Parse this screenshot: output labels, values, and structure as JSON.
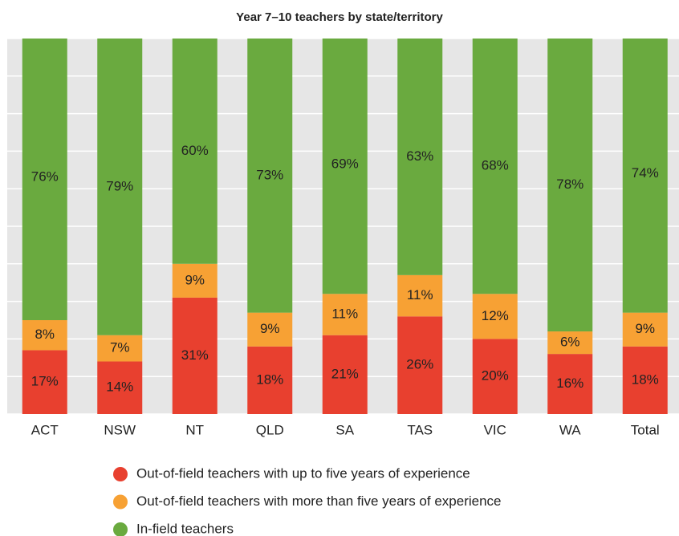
{
  "chart_data": {
    "type": "stacked_bar",
    "title": "Year 7–10 teachers by state/territory",
    "categories": [
      "ACT",
      "NSW",
      "NT",
      "QLD",
      "SA",
      "TAS",
      "VIC",
      "WA",
      "Total"
    ],
    "series": [
      {
        "name": "Out-of-field teachers with up to five years of experience",
        "color": "#e8402f",
        "values": [
          17,
          14,
          31,
          18,
          21,
          26,
          20,
          16,
          18
        ],
        "value_labels": [
          "17%",
          "14%",
          "31%",
          "18%",
          "21%",
          "26%",
          "20%",
          "16%",
          "18%"
        ]
      },
      {
        "name": "Out-of-field teachers with more than five years of experience",
        "color": "#f7a134",
        "values": [
          8,
          7,
          9,
          9,
          11,
          11,
          12,
          6,
          9
        ],
        "value_labels": [
          "8%",
          "7%",
          "9%",
          "9%",
          "11%",
          "11%",
          "12%",
          "6%",
          "9%"
        ]
      },
      {
        "name": "In-field teachers",
        "color": "#6aaa3f",
        "values": [
          76,
          79,
          60,
          73,
          69,
          63,
          68,
          78,
          74
        ],
        "value_labels": [
          "76%",
          "79%",
          "60%",
          "73%",
          "69%",
          "63%",
          "68%",
          "78%",
          "74%"
        ]
      }
    ],
    "ylim": [
      0,
      100
    ],
    "yticks": [
      0,
      10,
      20,
      30,
      40,
      50,
      60,
      70,
      80,
      90,
      100
    ],
    "grid": true
  }
}
